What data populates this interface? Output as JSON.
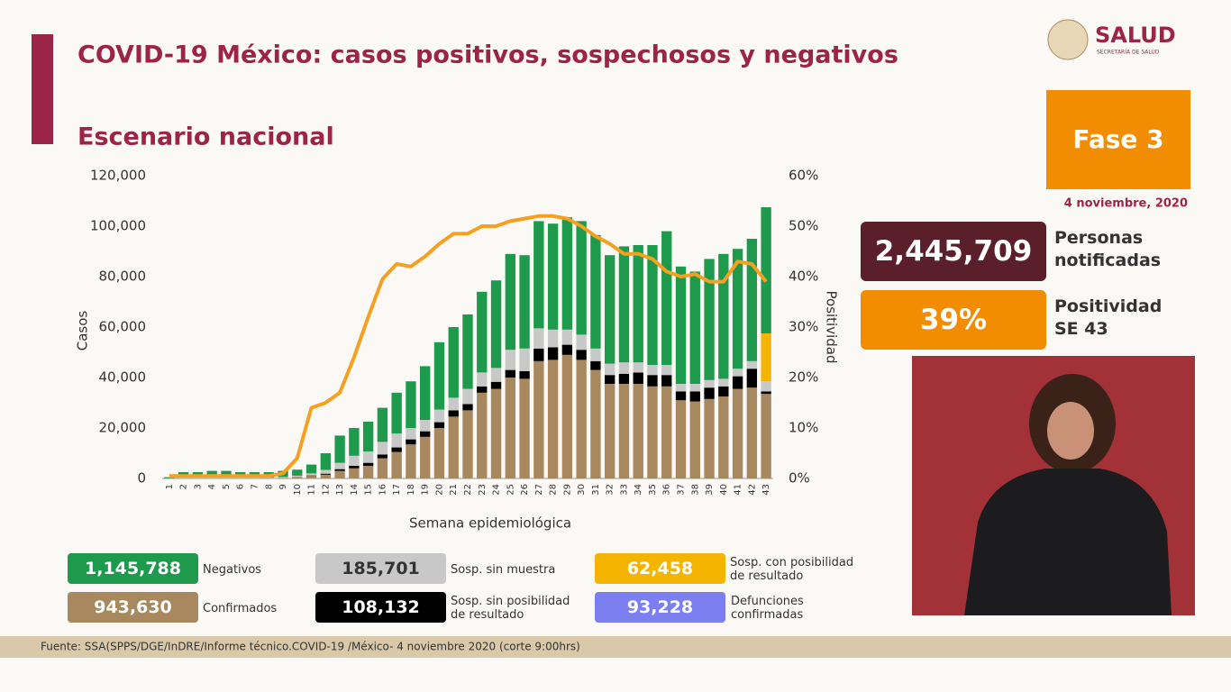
{
  "header": {
    "title": "COVID-19 México: casos positivos, sospechosos y negativos",
    "subtitle": "Escenario nacional",
    "logo": "SALUD",
    "logo_sub": "SECRETARÍA DE SALUD",
    "phase": "Fase 3",
    "date": "4 noviembre, 2020"
  },
  "stats": [
    {
      "value": "2,445,709",
      "label": "Personas notificadas",
      "color": "#5a1f2b"
    },
    {
      "value": "39%",
      "label": "Positividad SE 43",
      "color": "#f28c00"
    }
  ],
  "chart_data": {
    "type": "bar",
    "stacked": true,
    "x_label": "Semana epidemiológica",
    "y_label": "Casos",
    "y2_label": "Positividad",
    "categories": [
      "1",
      "2",
      "3",
      "4",
      "5",
      "6",
      "7",
      "8",
      "9",
      "10",
      "11",
      "12",
      "13",
      "14",
      "15",
      "16",
      "17",
      "18",
      "19",
      "20",
      "21",
      "22",
      "23",
      "24",
      "25",
      "26",
      "27",
      "28",
      "29",
      "30",
      "31",
      "32",
      "33",
      "34",
      "35",
      "36",
      "37",
      "38",
      "39",
      "40",
      "41",
      "42",
      "43"
    ],
    "ylim": [
      0,
      120000
    ],
    "yticks": [
      0,
      {
        "value": 20000,
        "label": "20,000"
      },
      {
        "value": 40000,
        "label": "40,000"
      },
      {
        "value": 60000,
        "label": "60,000"
      },
      {
        "value": 80000,
        "label": "80,000"
      },
      {
        "value": 100000,
        "label": "100,000"
      },
      {
        "value": 120000,
        "label": "120,000"
      }
    ],
    "y2lim": [
      0,
      60
    ],
    "y2ticks": [
      {
        "value": 0,
        "label": "0%"
      },
      {
        "value": 10,
        "label": "10%"
      },
      {
        "value": 20,
        "label": "20%"
      },
      {
        "value": 30,
        "label": "30%"
      },
      {
        "value": 40,
        "label": "40%"
      },
      {
        "value": 50,
        "label": "50%"
      },
      {
        "value": 60,
        "label": "60%"
      }
    ],
    "series": [
      {
        "name": "Confirmados",
        "total": "943,630",
        "color": "#a8895f",
        "values": [
          0,
          0,
          0,
          0,
          0,
          0,
          0,
          100,
          200,
          500,
          1000,
          1500,
          3000,
          4000,
          5000,
          8000,
          10500,
          13500,
          16500,
          20000,
          24500,
          27000,
          34000,
          35500,
          40000,
          39500,
          46500,
          47000,
          49000,
          47000,
          43000,
          37500,
          37500,
          37500,
          36500,
          36500,
          31000,
          30500,
          31500,
          32500,
          35500,
          36000,
          33500
        ]
      },
      {
        "name": "Sosp. sin posibilidad de resultado",
        "total": "108,132",
        "color": "#000000",
        "values": [
          0,
          0,
          0,
          0,
          0,
          0,
          0,
          0,
          0,
          100,
          200,
          400,
          700,
          1000,
          1200,
          1500,
          1800,
          2000,
          2200,
          2300,
          2500,
          2500,
          2500,
          2800,
          3000,
          3000,
          5000,
          5000,
          4000,
          4000,
          3500,
          3500,
          4000,
          4500,
          4500,
          4500,
          3500,
          4000,
          4500,
          4000,
          5000,
          7500,
          1000
        ]
      },
      {
        "name": "Sosp. sin muestra",
        "total": "185,701",
        "color": "#c8c8c8",
        "values": [
          100,
          300,
          300,
          300,
          300,
          300,
          300,
          300,
          400,
          500,
          800,
          1500,
          2500,
          4000,
          4500,
          5000,
          5500,
          4500,
          4500,
          5000,
          5000,
          6000,
          5500,
          5500,
          8000,
          9000,
          8000,
          7000,
          6000,
          6000,
          5000,
          4500,
          4500,
          4000,
          4000,
          4000,
          3000,
          3000,
          3000,
          3000,
          3000,
          3000,
          4000
        ]
      },
      {
        "name": "Sosp. con posibilidad de resultado",
        "total": "62,458",
        "color": "#f5b400",
        "values": [
          0,
          0,
          0,
          0,
          0,
          0,
          0,
          0,
          0,
          0,
          0,
          0,
          0,
          0,
          0,
          0,
          0,
          0,
          0,
          0,
          0,
          0,
          0,
          0,
          0,
          0,
          0,
          0,
          0,
          0,
          0,
          0,
          0,
          0,
          0,
          0,
          0,
          0,
          0,
          0,
          0,
          0,
          19000
        ]
      },
      {
        "name": "Negativos",
        "total": "1,145,788",
        "color": "#1e9a4c",
        "values": [
          400,
          2200,
          2200,
          2700,
          2700,
          2200,
          2200,
          2100,
          2400,
          2400,
          3500,
          6600,
          10800,
          11000,
          11800,
          13500,
          16200,
          18500,
          21300,
          26700,
          28000,
          29500,
          32000,
          34700,
          38000,
          37000,
          42500,
          42000,
          44500,
          45000,
          45000,
          43000,
          46000,
          46500,
          47500,
          53000,
          46500,
          44500,
          48000,
          49500,
          47500,
          48500,
          50000
        ]
      },
      {
        "type": "line",
        "axis": "y2",
        "color": "#f5a020",
        "values": [
          0.5,
          0.5,
          0.5,
          0.5,
          0.5,
          0.5,
          0.5,
          0.5,
          1,
          4,
          14,
          15,
          17,
          24,
          32,
          39.5,
          42.5,
          42,
          44,
          46.5,
          48.5,
          48.5,
          50,
          50,
          51,
          51.5,
          52,
          52,
          51.5,
          50,
          48,
          46.5,
          44.5,
          44.5,
          43.5,
          41,
          40,
          40.5,
          39,
          39,
          43,
          42.5,
          39
        ]
      }
    ],
    "extra_legend": {
      "name": "Defunciones confirmadas",
      "total": "93,228",
      "color": "#7b7ff0"
    }
  },
  "footer": "Fuente: SSA(SPPS/DGE/InDRE/Informe técnico.COVID-19 /México- 4 noviembre 2020 (corte 9:00hrs)"
}
